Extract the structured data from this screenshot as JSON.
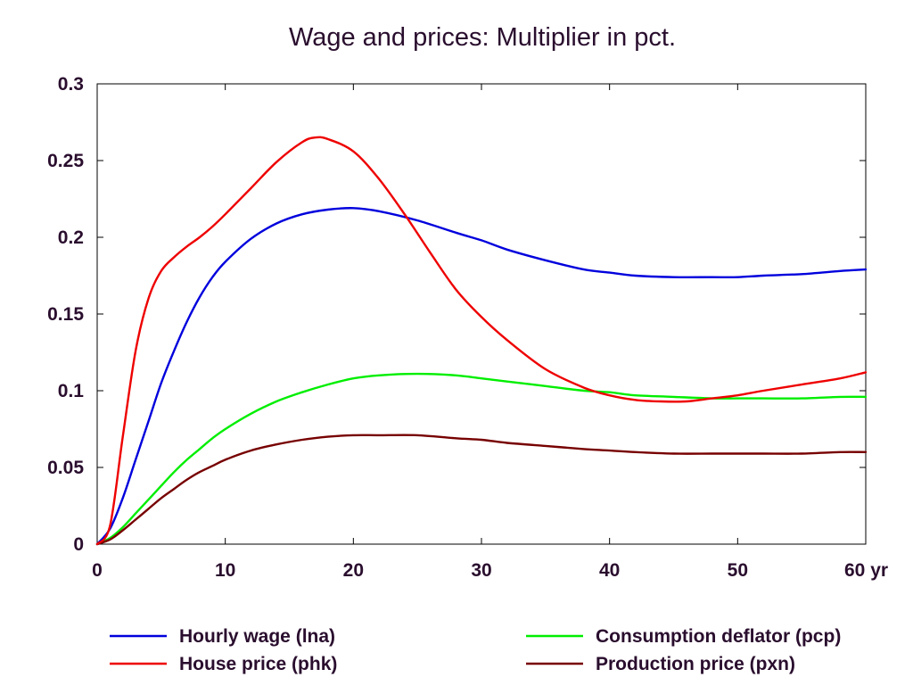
{
  "chart_data": {
    "type": "line",
    "title": "Wage and prices: Multiplier in pct.",
    "xlabel": "",
    "ylabel": "",
    "xlim": [
      0,
      60
    ],
    "ylim": [
      0,
      0.3
    ],
    "x_ticks": [
      0,
      10,
      20,
      30,
      40,
      50,
      60
    ],
    "x_tick_labels": [
      "0",
      "10",
      "20",
      "30",
      "40",
      "50",
      "60 yr"
    ],
    "y_ticks": [
      0,
      0.05,
      0.1,
      0.15,
      0.2,
      0.25,
      0.3
    ],
    "y_tick_labels": [
      "0",
      "0.05",
      "0.1",
      "0.15",
      "0.2",
      "0.25",
      "0.3"
    ],
    "grid": false,
    "legend_position": "bottom",
    "series": [
      {
        "name": "Hourly wage (lna)",
        "color": "#0000dd",
        "x": [
          0,
          1,
          2,
          3,
          4,
          5,
          6,
          7,
          8,
          9,
          10,
          12,
          14,
          16,
          18,
          20,
          22,
          25,
          28,
          30,
          32,
          35,
          38,
          40,
          42,
          45,
          48,
          50,
          52,
          55,
          58,
          60
        ],
        "y": [
          0,
          0.01,
          0.03,
          0.055,
          0.08,
          0.105,
          0.126,
          0.145,
          0.161,
          0.174,
          0.184,
          0.199,
          0.209,
          0.215,
          0.218,
          0.219,
          0.217,
          0.211,
          0.203,
          0.198,
          0.192,
          0.185,
          0.179,
          0.177,
          0.175,
          0.174,
          0.174,
          0.174,
          0.175,
          0.176,
          0.178,
          0.179
        ]
      },
      {
        "name": "House price (phk)",
        "color": "#ee0000",
        "x": [
          0,
          1,
          2,
          3,
          4,
          5,
          6,
          7,
          8,
          9,
          10,
          12,
          14,
          16,
          17,
          18,
          20,
          22,
          24,
          26,
          28,
          30,
          32,
          35,
          38,
          40,
          42,
          44,
          46,
          48,
          50,
          52,
          55,
          58,
          60
        ],
        "y": [
          0,
          0.012,
          0.07,
          0.126,
          0.16,
          0.178,
          0.187,
          0.194,
          0.2,
          0.207,
          0.215,
          0.232,
          0.249,
          0.262,
          0.265,
          0.264,
          0.256,
          0.238,
          0.215,
          0.19,
          0.166,
          0.148,
          0.133,
          0.114,
          0.102,
          0.097,
          0.094,
          0.093,
          0.093,
          0.095,
          0.097,
          0.1,
          0.104,
          0.108,
          0.112
        ]
      },
      {
        "name": "Consumption deflator (pcp)",
        "color": "#00ee00",
        "x": [
          0,
          1,
          2,
          3,
          4,
          5,
          6,
          7,
          8,
          9,
          10,
          12,
          14,
          16,
          18,
          20,
          22,
          25,
          28,
          30,
          32,
          35,
          38,
          40,
          42,
          45,
          48,
          50,
          52,
          55,
          58,
          60
        ],
        "y": [
          0,
          0.004,
          0.011,
          0.02,
          0.029,
          0.038,
          0.047,
          0.055,
          0.062,
          0.069,
          0.075,
          0.085,
          0.093,
          0.099,
          0.104,
          0.108,
          0.11,
          0.111,
          0.11,
          0.108,
          0.106,
          0.103,
          0.1,
          0.099,
          0.097,
          0.096,
          0.095,
          0.095,
          0.095,
          0.095,
          0.096,
          0.096
        ]
      },
      {
        "name": "Production price (pxn)",
        "color": "#770000",
        "x": [
          0,
          1,
          2,
          3,
          4,
          5,
          6,
          7,
          8,
          9,
          10,
          12,
          14,
          16,
          18,
          20,
          22,
          25,
          28,
          30,
          32,
          35,
          38,
          40,
          42,
          45,
          48,
          50,
          52,
          55,
          58,
          60
        ],
        "y": [
          0,
          0.003,
          0.009,
          0.016,
          0.023,
          0.03,
          0.036,
          0.042,
          0.047,
          0.051,
          0.055,
          0.061,
          0.065,
          0.068,
          0.07,
          0.071,
          0.071,
          0.071,
          0.069,
          0.068,
          0.066,
          0.064,
          0.062,
          0.061,
          0.06,
          0.059,
          0.059,
          0.059,
          0.059,
          0.059,
          0.06,
          0.06
        ]
      }
    ]
  }
}
